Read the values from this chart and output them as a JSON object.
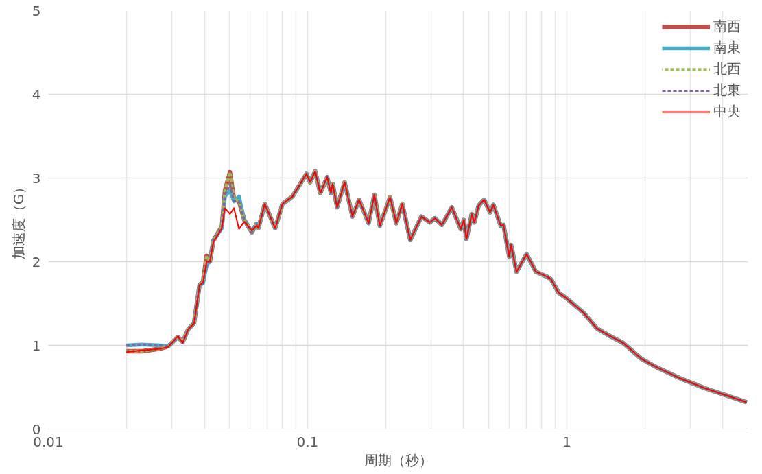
{
  "chart_data": {
    "type": "line",
    "xlabel": "周期（秒）",
    "ylabel": "加速度（G）",
    "log": "x",
    "xlim": [
      0.01,
      5
    ],
    "ylim": [
      0,
      5
    ],
    "yticks": [
      0,
      1,
      2,
      3,
      4,
      5
    ],
    "xticks": [
      0.01,
      {
        "value": 0.02,
        "label": null
      },
      {
        "value": 0.03,
        "label": null
      },
      {
        "value": 0.04,
        "label": null
      },
      {
        "value": 0.05,
        "label": null
      },
      {
        "value": 0.06,
        "label": null
      },
      {
        "value": 0.07,
        "label": null
      },
      {
        "value": 0.08,
        "label": null
      },
      {
        "value": 0.09,
        "label": null
      },
      0.1,
      {
        "value": 0.2,
        "label": null
      },
      {
        "value": 0.3,
        "label": null
      },
      {
        "value": 0.4,
        "label": null
      },
      {
        "value": 0.5,
        "label": null
      },
      {
        "value": 0.6,
        "label": null
      },
      {
        "value": 0.7,
        "label": null
      },
      {
        "value": 0.8,
        "label": null
      },
      {
        "value": 0.9,
        "label": null
      },
      1,
      {
        "value": 2,
        "label": null
      },
      {
        "value": 3,
        "label": null
      },
      {
        "value": 4,
        "label": null
      }
    ],
    "grid": true,
    "legend": "top right",
    "marker": "none",
    "x": [
      0.02,
      0.023,
      0.027,
      0.029,
      0.0316,
      0.033,
      0.0346,
      0.0365,
      0.0383,
      0.0395,
      0.0408,
      0.042,
      0.0433,
      0.0467,
      0.048,
      0.0502,
      0.052,
      0.0544,
      0.057,
      0.061,
      0.0635,
      0.0646,
      0.0684,
      0.075,
      0.08,
      0.0875,
      0.099,
      0.1023,
      0.107,
      0.112,
      0.119,
      0.123,
      0.125,
      0.13,
      0.139,
      0.149,
      0.158,
      0.172,
      0.181,
      0.19,
      0.208,
      0.22,
      0.232,
      0.249,
      0.275,
      0.296,
      0.31,
      0.33,
      0.36,
      0.39,
      0.401,
      0.41,
      0.43,
      0.44,
      0.457,
      0.48,
      0.506,
      0.521,
      0.556,
      0.57,
      0.6,
      0.61,
      0.64,
      0.7,
      0.76,
      0.84,
      0.87,
      0.93,
      1.0,
      1.16,
      1.31,
      1.45,
      1.65,
      1.94,
      2.25,
      2.77,
      3.4,
      4.95
    ],
    "series": [
      {
        "name": "南西",
        "color": "#c0504d",
        "line_style": "solid",
        "values": [
          0.93,
          0.93,
          0.96,
          0.99,
          1.1,
          1.04,
          1.19,
          1.27,
          1.72,
          1.76,
          2.07,
          2.0,
          2.25,
          2.42,
          2.85,
          3.07,
          2.75,
          2.72,
          2.5,
          2.35,
          2.45,
          2.4,
          2.69,
          2.4,
          2.69,
          2.78,
          3.05,
          2.95,
          3.08,
          2.82,
          3.01,
          2.82,
          2.93,
          2.65,
          2.95,
          2.54,
          2.74,
          2.46,
          2.8,
          2.43,
          2.77,
          2.46,
          2.69,
          2.26,
          2.54,
          2.47,
          2.52,
          2.44,
          2.65,
          2.39,
          2.5,
          2.27,
          2.57,
          2.47,
          2.67,
          2.74,
          2.59,
          2.68,
          2.43,
          2.44,
          2.06,
          2.2,
          1.88,
          2.09,
          1.88,
          1.82,
          1.79,
          1.63,
          1.56,
          1.39,
          1.2,
          1.12,
          1.03,
          0.84,
          0.73,
          0.6,
          0.49,
          0.32
        ]
      },
      {
        "name": "南東",
        "color": "#4bacc6",
        "line_style": "solid",
        "values": [
          1.0,
          1.01,
          1.0,
          0.99,
          1.1,
          1.04,
          1.19,
          1.27,
          1.72,
          1.74,
          1.95,
          2.02,
          2.25,
          2.4,
          2.78,
          2.85,
          2.72,
          2.78,
          2.5,
          2.35,
          2.45,
          2.4,
          2.69,
          2.4,
          2.69,
          2.78,
          3.05,
          2.95,
          3.08,
          2.82,
          3.01,
          2.82,
          2.93,
          2.65,
          2.95,
          2.54,
          2.74,
          2.46,
          2.8,
          2.43,
          2.77,
          2.46,
          2.69,
          2.26,
          2.54,
          2.47,
          2.52,
          2.44,
          2.65,
          2.39,
          2.5,
          2.27,
          2.57,
          2.47,
          2.67,
          2.74,
          2.59,
          2.68,
          2.43,
          2.44,
          2.06,
          2.2,
          1.88,
          2.09,
          1.88,
          1.82,
          1.79,
          1.63,
          1.56,
          1.39,
          1.2,
          1.12,
          1.03,
          0.84,
          0.73,
          0.6,
          0.49,
          0.32
        ]
      },
      {
        "name": "北西",
        "color": "#9bbb59",
        "line_style": "dashed",
        "values": [
          0.93,
          0.93,
          0.96,
          0.99,
          1.1,
          1.04,
          1.19,
          1.27,
          1.72,
          1.76,
          2.07,
          2.0,
          2.25,
          2.42,
          2.85,
          3.07,
          2.75,
          2.72,
          2.5,
          2.35,
          2.45,
          2.4,
          2.69,
          2.4,
          2.69,
          2.78,
          3.05,
          2.95,
          3.08,
          2.82,
          3.01,
          2.82,
          2.93,
          2.65,
          2.95,
          2.54,
          2.74,
          2.46,
          2.8,
          2.43,
          2.77,
          2.46,
          2.7,
          2.26,
          2.54,
          2.47,
          2.52,
          2.44,
          2.65,
          2.39,
          2.5,
          2.27,
          2.57,
          2.47,
          2.67,
          2.74,
          2.59,
          2.68,
          2.43,
          2.44,
          2.06,
          2.2,
          1.88,
          2.09,
          1.88,
          1.82,
          1.79,
          1.63,
          1.56,
          1.39,
          1.2,
          1.12,
          1.03,
          0.84,
          0.73,
          0.6,
          0.49,
          0.32
        ]
      },
      {
        "name": "北東",
        "color": "#8064a2",
        "line_style": "dashed",
        "values": [
          1.0,
          1.01,
          1.0,
          0.99,
          1.1,
          1.04,
          1.19,
          1.27,
          1.72,
          1.74,
          1.95,
          2.02,
          2.25,
          2.4,
          2.8,
          2.92,
          2.72,
          2.72,
          2.5,
          2.35,
          2.45,
          2.4,
          2.69,
          2.4,
          2.69,
          2.78,
          3.05,
          2.95,
          3.08,
          2.82,
          3.01,
          2.82,
          2.93,
          2.65,
          2.95,
          2.54,
          2.74,
          2.46,
          2.8,
          2.43,
          2.77,
          2.46,
          2.69,
          2.26,
          2.54,
          2.47,
          2.52,
          2.44,
          2.65,
          2.39,
          2.5,
          2.27,
          2.57,
          2.47,
          2.67,
          2.74,
          2.59,
          2.68,
          2.43,
          2.44,
          2.06,
          2.2,
          1.88,
          2.09,
          1.88,
          1.82,
          1.79,
          1.63,
          1.56,
          1.39,
          1.2,
          1.12,
          1.03,
          0.84,
          0.73,
          0.6,
          0.49,
          0.32
        ]
      },
      {
        "name": "中央",
        "color": "#ff0000",
        "line_style": "solid",
        "values": [
          0.92,
          0.94,
          0.96,
          0.98,
          1.11,
          1.03,
          1.19,
          1.26,
          1.72,
          1.75,
          2.0,
          2.0,
          2.23,
          2.4,
          2.64,
          2.57,
          2.64,
          2.39,
          2.48,
          2.37,
          2.43,
          2.4,
          2.69,
          2.4,
          2.69,
          2.78,
          3.05,
          2.95,
          3.08,
          2.82,
          3.01,
          2.82,
          2.93,
          2.65,
          2.95,
          2.54,
          2.74,
          2.46,
          2.8,
          2.43,
          2.77,
          2.46,
          2.69,
          2.26,
          2.54,
          2.47,
          2.52,
          2.44,
          2.65,
          2.39,
          2.5,
          2.27,
          2.57,
          2.47,
          2.67,
          2.74,
          2.59,
          2.68,
          2.43,
          2.44,
          2.06,
          2.2,
          1.88,
          2.09,
          1.88,
          1.82,
          1.79,
          1.63,
          1.56,
          1.39,
          1.2,
          1.12,
          1.03,
          0.84,
          0.73,
          0.6,
          0.49,
          0.32
        ]
      }
    ]
  }
}
